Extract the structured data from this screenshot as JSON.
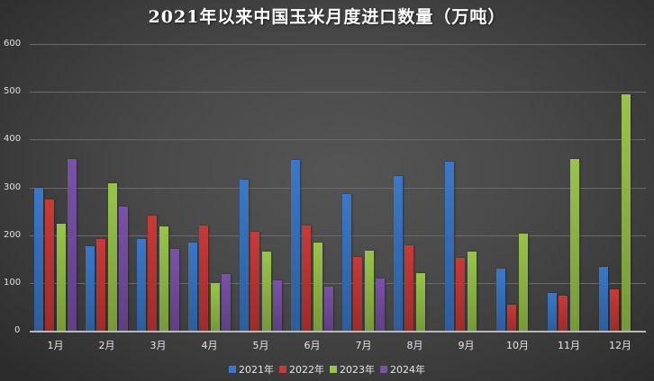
{
  "chart_data": {
    "type": "bar",
    "title": "2021年以来中国玉米月度进口数量（万吨）",
    "xlabel": "",
    "ylabel": "",
    "ylim": [
      0,
      600
    ],
    "yticks": [
      0,
      100,
      200,
      300,
      400,
      500,
      600
    ],
    "grid": true,
    "legend_position": "bottom",
    "categories": [
      "1月",
      "2月",
      "3月",
      "4月",
      "5月",
      "6月",
      "7月",
      "8月",
      "9月",
      "10月",
      "11月",
      "12月"
    ],
    "series": [
      {
        "name": "2021年",
        "color": "#3a78c8",
        "values": [
          300,
          177,
          192,
          184,
          316,
          357,
          286,
          324,
          354,
          130,
          79,
          133
        ]
      },
      {
        "name": "2022年",
        "color": "#c83a38",
        "values": [
          275,
          192,
          241,
          220,
          207,
          220,
          154,
          179,
          152,
          55,
          73,
          87
        ]
      },
      {
        "name": "2023年",
        "color": "#98c44a",
        "values": [
          224,
          308,
          218,
          100,
          166,
          184,
          167,
          120,
          166,
          203,
          359,
          495
        ]
      },
      {
        "name": "2024年",
        "color": "#7a52a8",
        "values": [
          359,
          260,
          171,
          118,
          105,
          92,
          109,
          null,
          null,
          null,
          null,
          null
        ]
      }
    ]
  }
}
